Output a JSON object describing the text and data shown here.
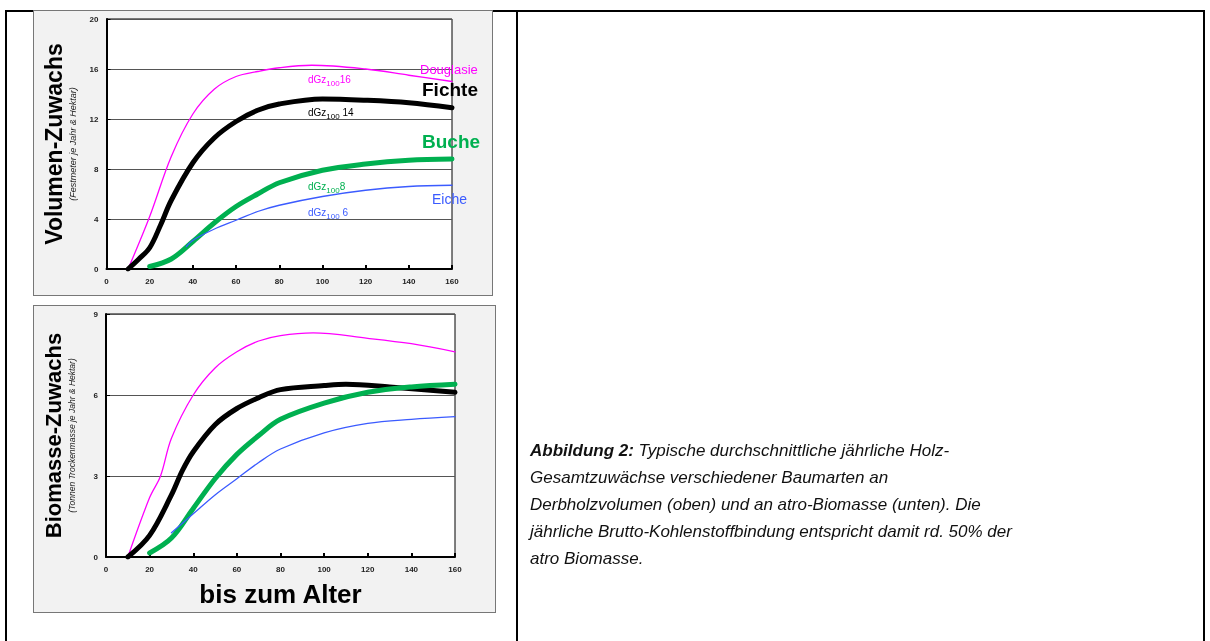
{
  "chart_data": [
    {
      "type": "line",
      "ylabel": "Volumen-Zuwachs\n(Festmeter je Jahr & Hektar)",
      "xlim": [
        0,
        160
      ],
      "xticks": [
        0,
        20,
        40,
        60,
        80,
        100,
        120,
        140,
        160
      ],
      "ylim": [
        0,
        20
      ],
      "yticks": [
        0,
        4,
        8,
        12,
        16,
        20
      ],
      "grid": "y",
      "legend": false,
      "marker": "none",
      "series": [
        {
          "name": "Douglasie",
          "color": "#ff00ff",
          "x": [
            10,
            20,
            30,
            40,
            50,
            60,
            70,
            80,
            95,
            120,
            140,
            160
          ],
          "values": [
            0,
            4.2,
            9.0,
            12.4,
            14.4,
            15.4,
            15.8,
            16.1,
            16.3,
            16.0,
            15.5,
            15.0
          ]
        },
        {
          "name": "Fichte",
          "color": "#000000",
          "x": [
            10,
            15,
            20,
            25,
            30,
            40,
            50,
            60,
            70,
            80,
            100,
            120,
            140,
            160
          ],
          "values": [
            0,
            0.8,
            1.7,
            3.5,
            5.5,
            8.5,
            10.5,
            11.8,
            12.7,
            13.2,
            13.6,
            13.5,
            13.3,
            12.9
          ]
        },
        {
          "name": "Buche",
          "color": "#00b050",
          "x": [
            20,
            30,
            40,
            50,
            60,
            70,
            80,
            100,
            120,
            140,
            160
          ],
          "values": [
            0.2,
            0.8,
            2.2,
            3.7,
            5.0,
            6.0,
            6.9,
            7.9,
            8.4,
            8.7,
            8.8
          ]
        },
        {
          "name": "Eiche",
          "color": "#3b5bff",
          "x": [
            37,
            40,
            50,
            60,
            70,
            80,
            100,
            120,
            140,
            160
          ],
          "values": [
            1.8,
            2.3,
            3.2,
            3.9,
            4.6,
            5.1,
            5.8,
            6.3,
            6.6,
            6.7
          ]
        }
      ],
      "annotations": [
        "dGz$_{100}$16",
        "dGz$_{100}$ 14",
        "dGz$_{100}$8",
        "dGz$_{100}$ 6"
      ]
    },
    {
      "type": "line",
      "ylabel": "Biomasse-Zuwachs\n(Tonnen Trockenmasse je Jahr & Hektar)",
      "xlabel": "bis zum Alter",
      "xlim": [
        0,
        160
      ],
      "xticks": [
        0,
        20,
        40,
        60,
        80,
        100,
        120,
        140,
        160
      ],
      "ylim": [
        0,
        9
      ],
      "yticks": [
        0,
        3,
        6,
        9
      ],
      "grid": "y",
      "legend": false,
      "marker": "none",
      "series": [
        {
          "color": "#ff00ff",
          "x": [
            10,
            20,
            25,
            30,
            40,
            50,
            60,
            70,
            80,
            95,
            120,
            140,
            160
          ],
          "values": [
            0,
            2.2,
            3.0,
            4.4,
            6.0,
            7.0,
            7.6,
            8.0,
            8.2,
            8.3,
            8.1,
            7.9,
            7.6
          ]
        },
        {
          "color": "#000000",
          "x": [
            10,
            20,
            30,
            35,
            40,
            50,
            60,
            70,
            80,
            100,
            110,
            130,
            160
          ],
          "values": [
            0,
            0.8,
            2.3,
            3.2,
            3.9,
            4.9,
            5.5,
            5.9,
            6.2,
            6.35,
            6.4,
            6.3,
            6.1
          ]
        },
        {
          "color": "#00b050",
          "x": [
            20,
            30,
            40,
            50,
            60,
            70,
            80,
            100,
            120,
            140,
            160
          ],
          "values": [
            0.15,
            0.7,
            1.8,
            2.9,
            3.8,
            4.5,
            5.1,
            5.7,
            6.1,
            6.3,
            6.4
          ]
        },
        {
          "color": "#3b5bff",
          "x": [
            30,
            40,
            50,
            60,
            70,
            80,
            100,
            120,
            140,
            160
          ],
          "values": [
            0.9,
            1.6,
            2.3,
            2.9,
            3.5,
            4.0,
            4.6,
            4.95,
            5.1,
            5.2
          ]
        }
      ]
    },
    {
      "type": "other",
      "title": "Abbildung 2:",
      "annotations": [
        "Typische durchschnittliche jährliche Holz-Gesamtzuwächse verschiedener Baumarten an Derbholzvolumen (oben) und an atro-Biomasse (unten). Die jährliche Brutto-Kohlenstoffbindung entspricht damit rd. 50% der atro Biomasse."
      ]
    }
  ]
}
